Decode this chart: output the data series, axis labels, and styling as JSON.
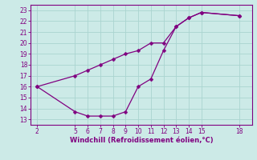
{
  "xlabel": "Windchill (Refroidissement éolien,°C)",
  "background_color": "#cceae7",
  "line_color": "#800080",
  "grid_color": "#aad4d0",
  "line1_x": [
    2,
    5,
    6,
    7,
    8,
    9,
    10,
    11,
    12,
    13,
    14,
    15,
    18
  ],
  "line1_y": [
    16.0,
    13.7,
    13.3,
    13.3,
    13.3,
    13.7,
    16.0,
    16.7,
    19.3,
    21.5,
    22.3,
    22.8,
    22.5
  ],
  "line2_x": [
    2,
    5,
    6,
    7,
    8,
    9,
    10,
    11,
    12,
    13,
    14,
    15,
    18
  ],
  "line2_y": [
    16.0,
    17.0,
    17.5,
    18.0,
    18.5,
    19.0,
    19.3,
    20.0,
    20.0,
    21.5,
    22.3,
    22.8,
    22.5
  ],
  "xlim": [
    1.5,
    19.0
  ],
  "ylim": [
    12.5,
    23.5
  ],
  "xticks": [
    2,
    5,
    6,
    7,
    8,
    9,
    10,
    11,
    12,
    13,
    14,
    15,
    18
  ],
  "yticks": [
    13,
    14,
    15,
    16,
    17,
    18,
    19,
    20,
    21,
    22,
    23
  ],
  "tick_fontsize": 5.5,
  "xlabel_fontsize": 6.0,
  "marker_size": 2.5,
  "line_width": 0.9
}
